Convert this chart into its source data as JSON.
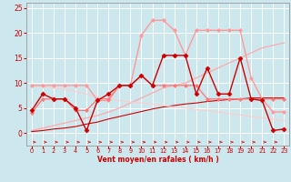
{
  "bg_color": "#cce8ee",
  "grid_color": "#ffffff",
  "xlabel": "Vent moyen/en rafales ( km/h )",
  "xlabel_color": "#cc0000",
  "tick_color": "#cc0000",
  "x_ticks": [
    0,
    1,
    2,
    3,
    4,
    5,
    6,
    7,
    8,
    9,
    10,
    11,
    12,
    13,
    14,
    15,
    16,
    17,
    18,
    19,
    20,
    21,
    22,
    23
  ],
  "y_ticks": [
    0,
    5,
    10,
    15,
    20,
    25
  ],
  "ylim": [
    -2.5,
    26
  ],
  "xlim": [
    -0.5,
    23.5
  ],
  "lines": [
    {
      "x": [
        0,
        1,
        2,
        3,
        4,
        5,
        6,
        7,
        8,
        9,
        10,
        11,
        12,
        13,
        14,
        15,
        16,
        17,
        18,
        19,
        20,
        21,
        22,
        23
      ],
      "y": [
        4.5,
        7.8,
        6.8,
        6.8,
        5.0,
        0.5,
        6.5,
        7.8,
        9.5,
        9.5,
        11.5,
        9.5,
        15.5,
        15.5,
        15.5,
        7.8,
        13.0,
        7.8,
        7.8,
        15.0,
        6.8,
        6.5,
        0.5,
        0.8
      ],
      "color": "#cc0000",
      "lw": 1.0,
      "marker": "D",
      "ms": 2.5,
      "zorder": 4
    },
    {
      "x": [
        0,
        1,
        2,
        3,
        4,
        5,
        6,
        7,
        8,
        9,
        10,
        11,
        12,
        13,
        14,
        15,
        16,
        17,
        18,
        19,
        20,
        21,
        22,
        23
      ],
      "y": [
        9.5,
        9.5,
        9.5,
        9.5,
        9.5,
        9.5,
        6.5,
        6.5,
        9.5,
        9.5,
        19.5,
        22.5,
        22.5,
        20.5,
        15.5,
        20.5,
        20.5,
        20.5,
        20.5,
        20.5,
        11.0,
        6.8,
        4.2,
        4.2
      ],
      "color": "#ff9999",
      "lw": 1.0,
      "marker": "D",
      "ms": 2.0,
      "zorder": 3
    },
    {
      "x": [
        0,
        1,
        2,
        3,
        4,
        5,
        6,
        7,
        8,
        9,
        10,
        11,
        12,
        13,
        14,
        15,
        16,
        17,
        18,
        19,
        20,
        21,
        22,
        23
      ],
      "y": [
        4.0,
        6.8,
        6.8,
        6.8,
        4.5,
        4.5,
        6.8,
        6.8,
        9.5,
        9.5,
        11.5,
        9.5,
        9.5,
        9.5,
        9.5,
        9.5,
        6.8,
        6.8,
        6.8,
        6.8,
        6.8,
        6.8,
        6.8,
        6.8
      ],
      "color": "#ff7777",
      "lw": 0.9,
      "marker": "D",
      "ms": 2.0,
      "zorder": 3
    },
    {
      "x": [
        0,
        1,
        2,
        3,
        4,
        5,
        6,
        7,
        8,
        9,
        10,
        11,
        12,
        13,
        14,
        15,
        16,
        17,
        18,
        19,
        20,
        21,
        22,
        23
      ],
      "y": [
        0.5,
        1.0,
        1.5,
        2.0,
        2.5,
        3.0,
        3.5,
        4.2,
        5.0,
        6.0,
        7.0,
        8.0,
        9.0,
        9.5,
        10.0,
        11.0,
        12.0,
        13.0,
        14.0,
        15.0,
        16.0,
        17.0,
        17.5,
        18.0
      ],
      "color": "#ffaaaa",
      "lw": 0.9,
      "marker": null,
      "ms": 0,
      "zorder": 2
    },
    {
      "x": [
        0,
        1,
        2,
        3,
        4,
        5,
        6,
        7,
        8,
        9,
        10,
        11,
        12,
        13,
        14,
        15,
        16,
        17,
        18,
        19,
        20,
        21,
        22,
        23
      ],
      "y": [
        0.3,
        0.5,
        0.8,
        1.0,
        1.3,
        1.8,
        2.2,
        2.8,
        3.3,
        3.8,
        4.3,
        4.8,
        5.2,
        5.5,
        5.8,
        6.0,
        6.3,
        6.5,
        6.7,
        6.8,
        7.0,
        7.0,
        7.0,
        7.0
      ],
      "color": "#cc0000",
      "lw": 0.8,
      "marker": null,
      "ms": 0,
      "zorder": 2
    },
    {
      "x": [
        0,
        1,
        2,
        3,
        4,
        5,
        6,
        7,
        8,
        9,
        10,
        11,
        12,
        13,
        14,
        15,
        16,
        17,
        18,
        19,
        20,
        21,
        22,
        23
      ],
      "y": [
        9.5,
        9.3,
        9.0,
        8.7,
        8.3,
        7.8,
        7.3,
        6.8,
        6.5,
        6.2,
        6.0,
        5.8,
        5.5,
        5.2,
        5.0,
        4.7,
        4.5,
        4.2,
        3.9,
        3.6,
        3.3,
        3.0,
        2.8,
        2.5
      ],
      "color": "#ffcccc",
      "lw": 0.8,
      "marker": null,
      "ms": 0,
      "zorder": 2
    }
  ],
  "arrows": {
    "y_data": -1.8,
    "color": "#cc0000",
    "count": 23
  }
}
